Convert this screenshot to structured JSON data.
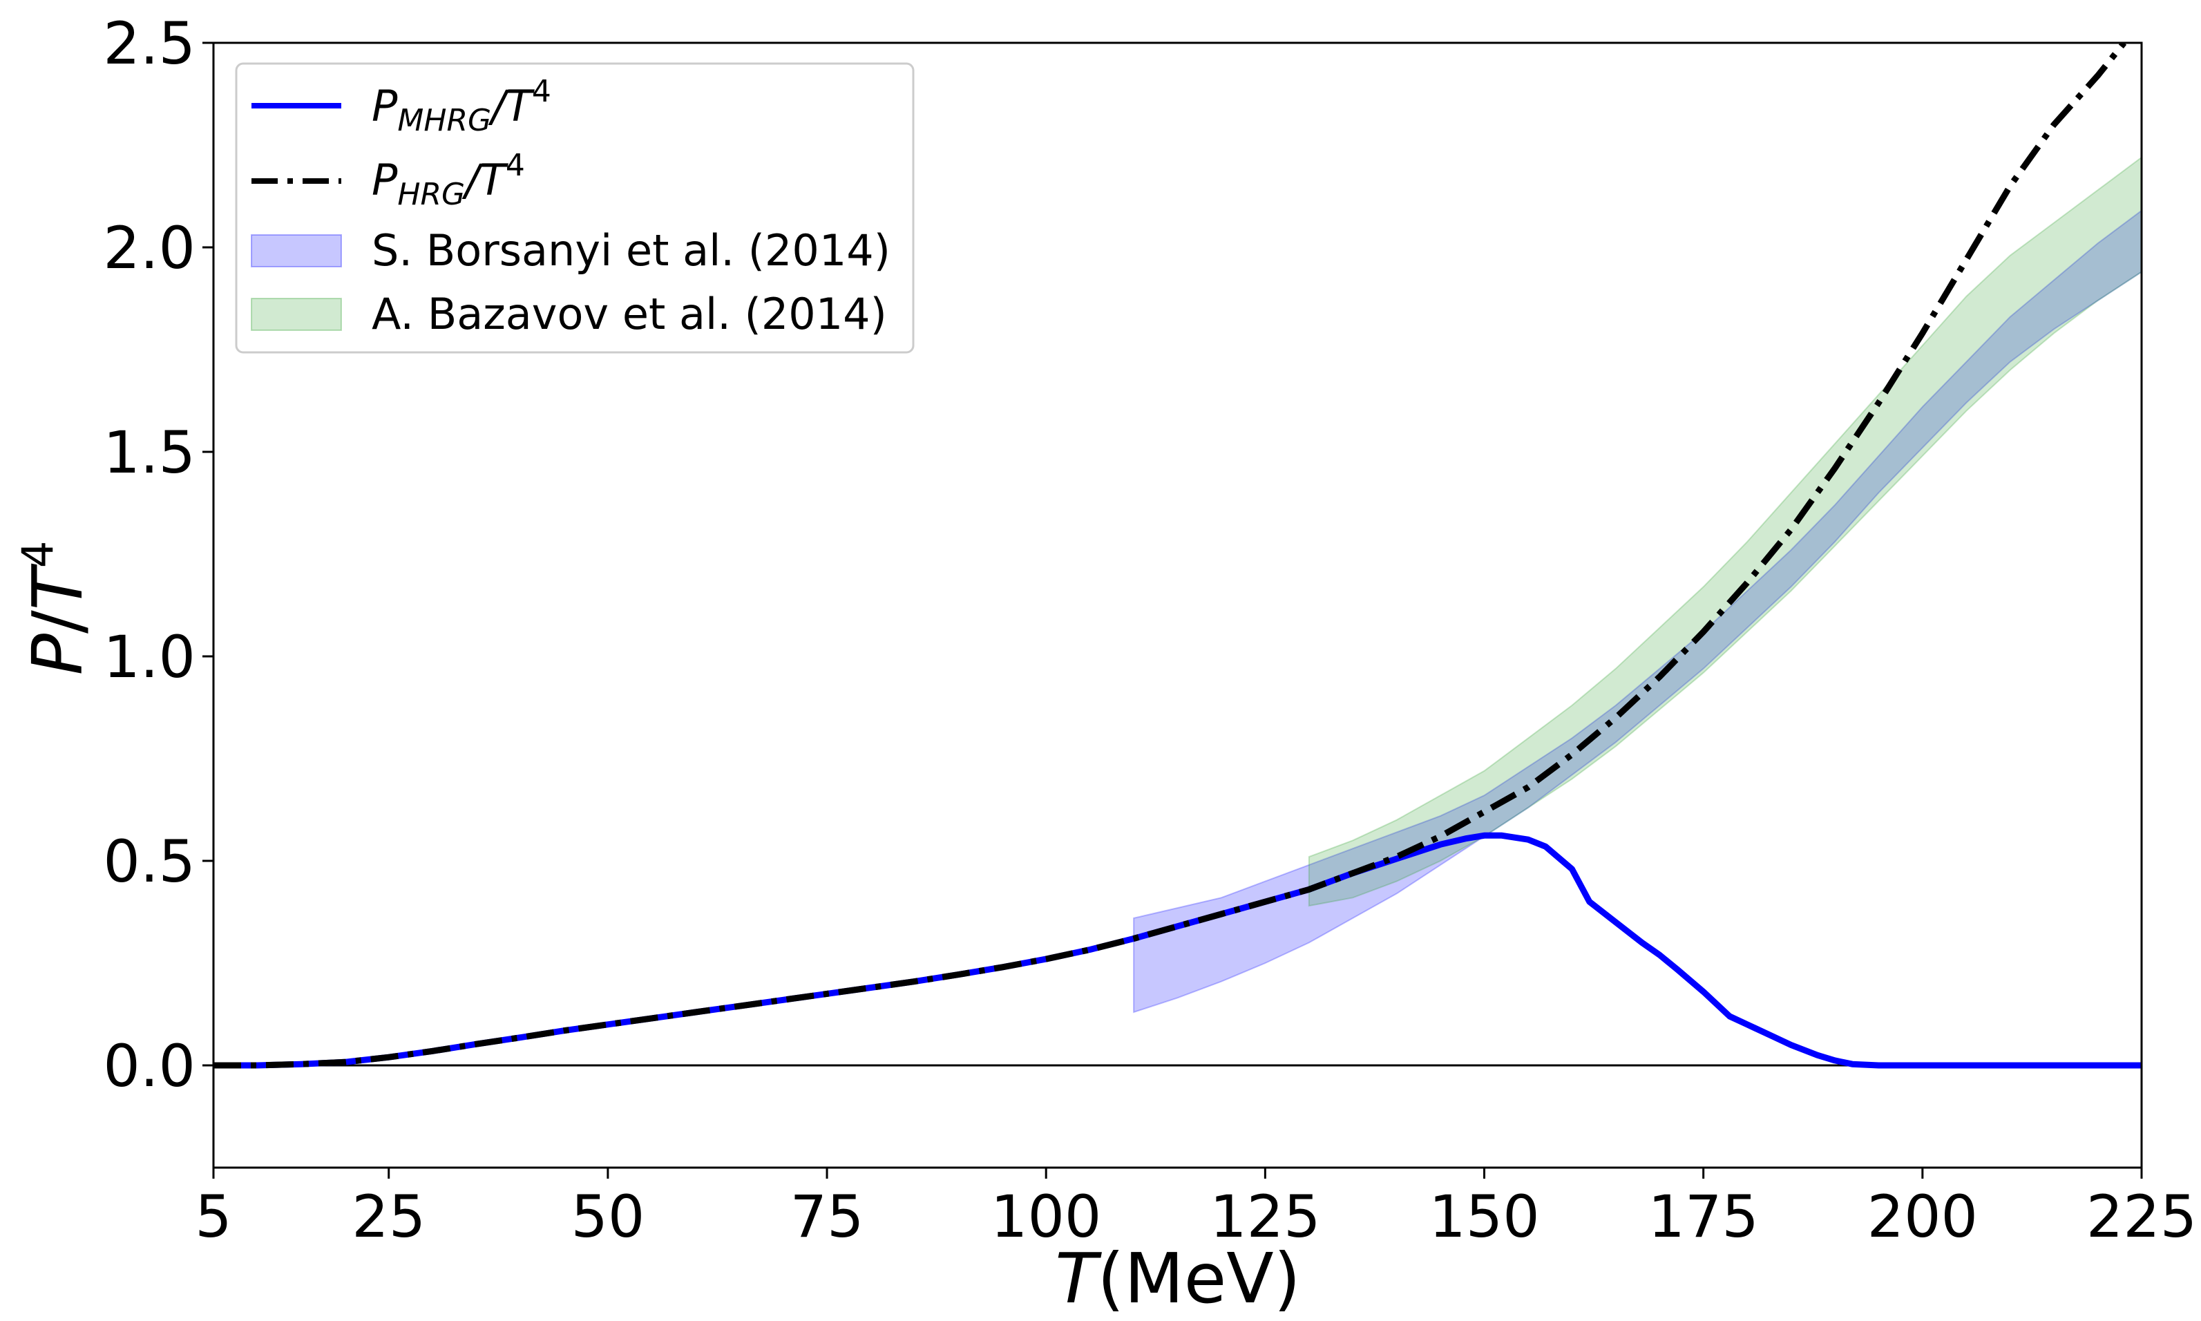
{
  "chart_data": {
    "type": "line",
    "xlabel": {
      "var": "T",
      "unit": "(MeV)"
    },
    "ylabel": {
      "var": "P",
      "sep": "/",
      "den": "T",
      "exp": "4"
    },
    "xlim": [
      5,
      225
    ],
    "ylim": [
      -0.25,
      2.5
    ],
    "xticks": [
      "5",
      "25",
      "50",
      "75",
      "100",
      "125",
      "150",
      "175",
      "200",
      "225"
    ],
    "yticks": [
      "0.0",
      "0.5",
      "1.0",
      "1.5",
      "2.0",
      "2.5"
    ],
    "zero_line": true,
    "grid": false,
    "legend_position": "top-left",
    "legend": [
      {
        "kind": "line",
        "sym": "P",
        "sub": "MHRG",
        "rest": "/T",
        "sup": "4",
        "color": "#0000ff"
      },
      {
        "kind": "dashdot",
        "sym": "P",
        "sub": "HRG",
        "rest": "/T",
        "sup": "4",
        "color": "#000000"
      },
      {
        "kind": "band",
        "text": "S. Borsanyi et al. (2014)",
        "color": "#0000ff"
      },
      {
        "kind": "band",
        "text": "A. Bazavov et al. (2014)",
        "color": "#2ca02c"
      }
    ],
    "series": [
      {
        "name": "P_MHRG/T^4",
        "style": "solid",
        "color": "#0000ff",
        "x": [
          5,
          10,
          15,
          20,
          25,
          30,
          35,
          40,
          45,
          50,
          55,
          60,
          65,
          70,
          75,
          80,
          85,
          90,
          95,
          100,
          105,
          110,
          115,
          120,
          125,
          130,
          135,
          140,
          145,
          148,
          150,
          152,
          155,
          157,
          160,
          162,
          165,
          168,
          170,
          172,
          175,
          178,
          180,
          183,
          185,
          188,
          190,
          192,
          195,
          200,
          210,
          225
        ],
        "y": [
          0.0,
          0.0,
          0.003,
          0.008,
          0.02,
          0.035,
          0.052,
          0.068,
          0.085,
          0.1,
          0.115,
          0.13,
          0.145,
          0.16,
          0.175,
          0.19,
          0.205,
          0.222,
          0.24,
          0.26,
          0.283,
          0.31,
          0.34,
          0.37,
          0.4,
          0.43,
          0.47,
          0.505,
          0.54,
          0.555,
          0.562,
          0.562,
          0.552,
          0.535,
          0.48,
          0.4,
          0.35,
          0.3,
          0.27,
          0.235,
          0.18,
          0.12,
          0.1,
          0.07,
          0.05,
          0.025,
          0.012,
          0.003,
          0.0,
          0.0,
          0.0,
          0.0
        ]
      },
      {
        "name": "P_HRG/T^4",
        "style": "dashdot",
        "color": "#000000",
        "x": [
          5,
          10,
          15,
          20,
          25,
          30,
          35,
          40,
          45,
          50,
          55,
          60,
          65,
          70,
          75,
          80,
          85,
          90,
          95,
          100,
          105,
          110,
          115,
          120,
          125,
          130,
          135,
          140,
          145,
          150,
          155,
          160,
          165,
          170,
          175,
          180,
          185,
          190,
          195,
          200,
          205,
          210,
          215,
          220,
          223
        ],
        "y": [
          0.0,
          0.0,
          0.003,
          0.008,
          0.02,
          0.035,
          0.052,
          0.068,
          0.085,
          0.1,
          0.115,
          0.13,
          0.145,
          0.16,
          0.175,
          0.19,
          0.205,
          0.222,
          0.24,
          0.26,
          0.283,
          0.31,
          0.34,
          0.37,
          0.4,
          0.43,
          0.47,
          0.51,
          0.56,
          0.62,
          0.68,
          0.76,
          0.85,
          0.95,
          1.06,
          1.18,
          1.31,
          1.46,
          1.62,
          1.79,
          1.97,
          2.15,
          2.3,
          2.42,
          2.5
        ]
      }
    ],
    "bands": [
      {
        "name": "S. Borsanyi et al. (2014)",
        "color": "#0000ff",
        "opacity": 0.22,
        "x": [
          110,
          115,
          120,
          125,
          130,
          135,
          140,
          145,
          150,
          155,
          160,
          165,
          170,
          175,
          180,
          185,
          190,
          195,
          200,
          205,
          210,
          215,
          220,
          225
        ],
        "lower": [
          0.13,
          0.165,
          0.205,
          0.25,
          0.3,
          0.36,
          0.42,
          0.49,
          0.56,
          0.63,
          0.71,
          0.79,
          0.88,
          0.97,
          1.07,
          1.17,
          1.28,
          1.4,
          1.51,
          1.62,
          1.72,
          1.8,
          1.87,
          1.94
        ],
        "upper": [
          0.36,
          0.385,
          0.41,
          0.45,
          0.49,
          0.53,
          0.57,
          0.61,
          0.66,
          0.73,
          0.8,
          0.88,
          0.97,
          1.06,
          1.16,
          1.26,
          1.37,
          1.49,
          1.61,
          1.72,
          1.83,
          1.92,
          2.01,
          2.09
        ]
      },
      {
        "name": "A. Bazavov et al. (2014)",
        "color": "#2ca02c",
        "opacity": 0.22,
        "x": [
          130,
          135,
          140,
          145,
          150,
          155,
          160,
          165,
          170,
          175,
          180,
          185,
          190,
          195,
          200,
          205,
          210,
          215,
          220,
          225
        ],
        "lower": [
          0.39,
          0.41,
          0.45,
          0.5,
          0.56,
          0.63,
          0.7,
          0.78,
          0.87,
          0.96,
          1.06,
          1.16,
          1.27,
          1.38,
          1.49,
          1.6,
          1.7,
          1.79,
          1.87,
          1.94
        ],
        "upper": [
          0.51,
          0.55,
          0.6,
          0.66,
          0.72,
          0.8,
          0.88,
          0.97,
          1.07,
          1.17,
          1.28,
          1.4,
          1.52,
          1.64,
          1.76,
          1.88,
          1.98,
          2.06,
          2.14,
          2.22
        ]
      }
    ]
  }
}
